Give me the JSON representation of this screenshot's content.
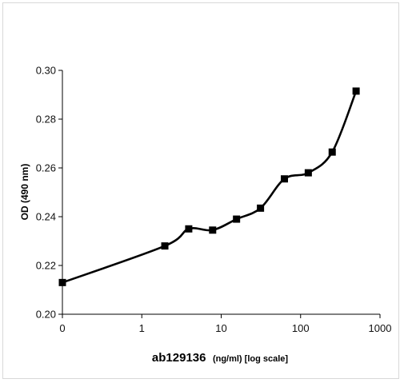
{
  "chart_data": {
    "type": "line",
    "title": "",
    "xlabel": "ab129136",
    "xlabel_units": "(ng/ml) [log scale]",
    "ylabel": "OD (490 nm)",
    "x_scale": "log",
    "x_ticks": [
      0.1,
      1,
      10,
      100,
      1000
    ],
    "x_tick_labels": [
      "0",
      "1",
      "10",
      "100",
      "1000"
    ],
    "y_ticks": [
      0.2,
      0.22,
      0.24,
      0.26,
      0.28,
      0.3
    ],
    "y_tick_labels": [
      "0.20",
      "0.22",
      "0.24",
      "0.26",
      "0.28",
      "0.30"
    ],
    "ylim": [
      0.2,
      0.3
    ],
    "grid": false,
    "legend": "none",
    "marker": "square",
    "line_color": "#000000",
    "series": [
      {
        "x": [
          0.1,
          1.95,
          3.9,
          7.8,
          15.6,
          31.25,
          62.5,
          125,
          250,
          500
        ],
        "values": [
          0.213,
          0.228,
          0.235,
          0.2345,
          0.239,
          0.2435,
          0.2555,
          0.258,
          0.2665,
          0.2915
        ]
      }
    ]
  }
}
